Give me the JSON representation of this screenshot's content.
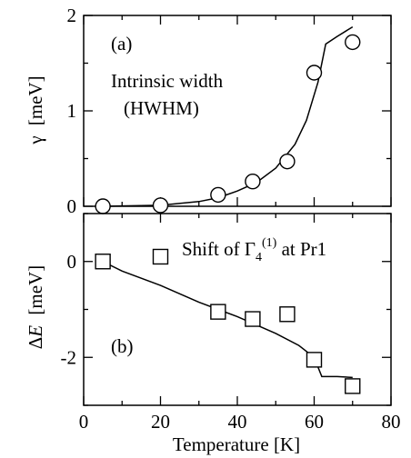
{
  "chart_data": [
    {
      "id": "a",
      "type": "scatter",
      "panel_label": "(a)",
      "annotation_lines": [
        "Intrinsic width",
        "(HWHM)"
      ],
      "ylabel_symbol": "γ",
      "ylabel_unit": "[meV]",
      "ylim": [
        0,
        2
      ],
      "yticks": [
        0,
        1,
        2
      ],
      "xlim": [
        0,
        80
      ],
      "marker": "circle",
      "points": [
        {
          "x": 5,
          "y": 0.0
        },
        {
          "x": 20,
          "y": 0.01
        },
        {
          "x": 35,
          "y": 0.12
        },
        {
          "x": 44,
          "y": 0.26
        },
        {
          "x": 53,
          "y": 0.47
        },
        {
          "x": 60,
          "y": 1.4
        },
        {
          "x": 70,
          "y": 1.72
        }
      ],
      "fit_line": [
        {
          "x": 5,
          "y": 0.0
        },
        {
          "x": 20,
          "y": 0.01
        },
        {
          "x": 30,
          "y": 0.05
        },
        {
          "x": 35,
          "y": 0.09
        },
        {
          "x": 40,
          "y": 0.16
        },
        {
          "x": 45,
          "y": 0.25
        },
        {
          "x": 50,
          "y": 0.4
        },
        {
          "x": 55,
          "y": 0.65
        },
        {
          "x": 58,
          "y": 0.9
        },
        {
          "x": 61,
          "y": 1.3
        },
        {
          "x": 63,
          "y": 1.7
        },
        {
          "x": 66,
          "y": 1.78
        },
        {
          "x": 70,
          "y": 1.88
        }
      ]
    },
    {
      "id": "b",
      "type": "scatter",
      "panel_label": "(b)",
      "annotation_main": "Shift of Γ",
      "annotation_sub": "4",
      "annotation_sup": "(1)",
      "annotation_tail": " at Pr1",
      "ylabel_delta": "Δ",
      "ylabel_var": "E",
      "ylabel_unit": "[meV]",
      "ylim": [
        -3,
        1
      ],
      "yticks": [
        0,
        -2
      ],
      "xlim": [
        0,
        80
      ],
      "xticks": [
        0,
        20,
        40,
        60,
        80
      ],
      "xlabel": "Temperature [K]",
      "marker": "square",
      "points": [
        {
          "x": 5,
          "y": 0.0
        },
        {
          "x": 20,
          "y": 0.1
        },
        {
          "x": 35,
          "y": -1.05
        },
        {
          "x": 44,
          "y": -1.2
        },
        {
          "x": 53,
          "y": -1.1
        },
        {
          "x": 60,
          "y": -2.05
        },
        {
          "x": 70,
          "y": -2.6
        }
      ],
      "fit_line": [
        {
          "x": 5,
          "y": 0.0
        },
        {
          "x": 10,
          "y": -0.2
        },
        {
          "x": 20,
          "y": -0.5
        },
        {
          "x": 30,
          "y": -0.85
        },
        {
          "x": 40,
          "y": -1.15
        },
        {
          "x": 50,
          "y": -1.5
        },
        {
          "x": 56,
          "y": -1.75
        },
        {
          "x": 60,
          "y": -2.0
        },
        {
          "x": 62,
          "y": -2.4
        },
        {
          "x": 66,
          "y": -2.4
        },
        {
          "x": 70,
          "y": -2.42
        }
      ]
    }
  ]
}
